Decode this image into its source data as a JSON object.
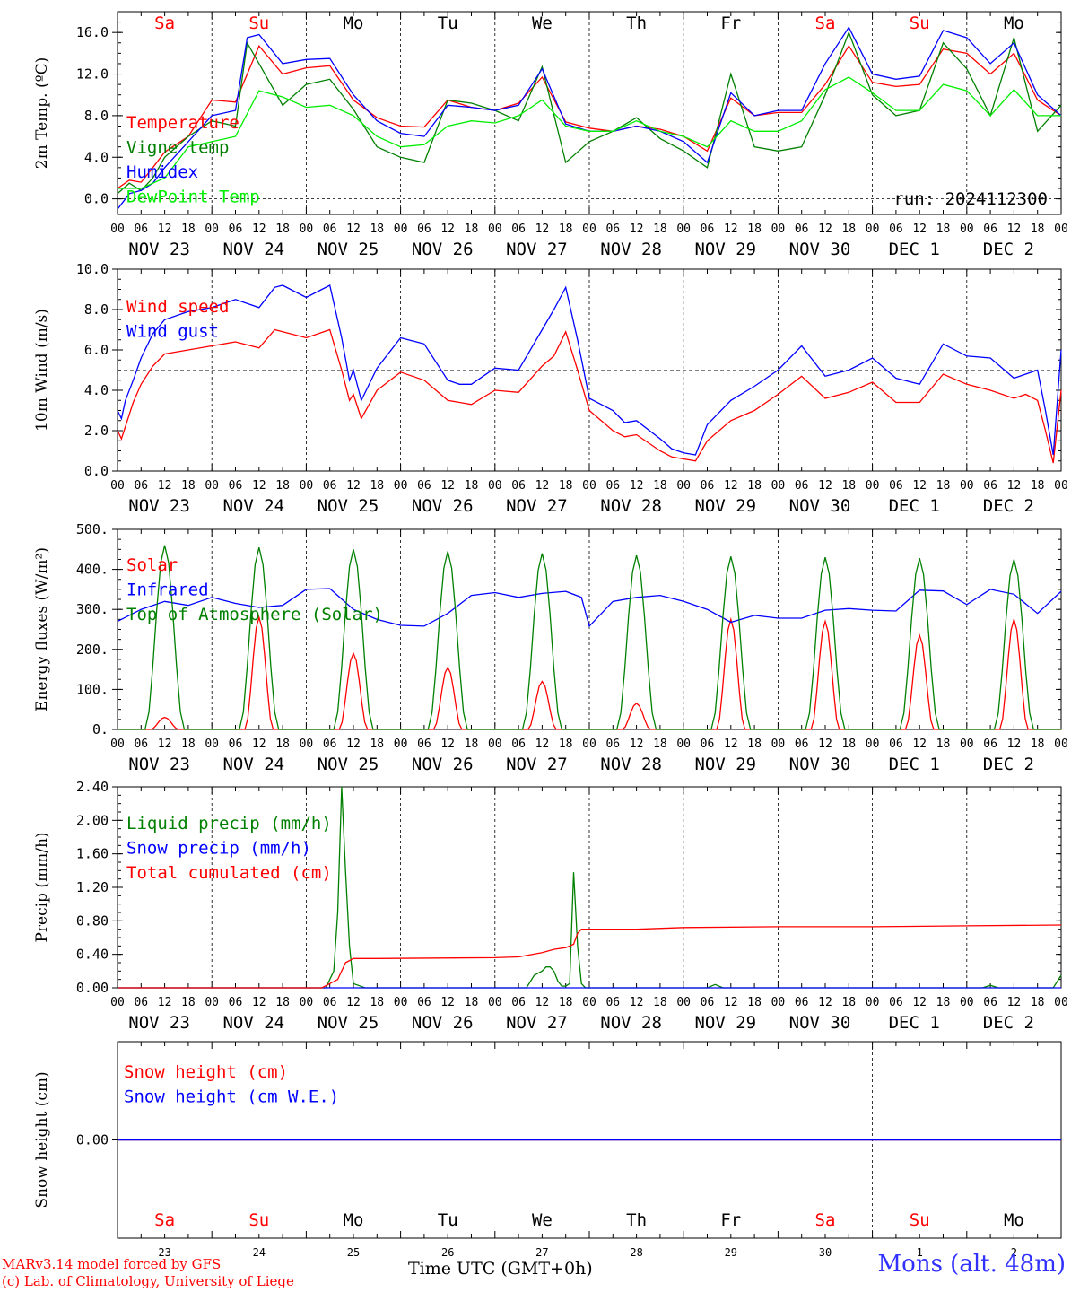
{
  "station": "Mons (alt. 48m)",
  "credits": [
    "MARv3.14 model forced by GFS",
    "(c) Lab. of Climatology, University of Liege"
  ],
  "time_label": "Time UTC (GMT+0h)",
  "run_label": "run: 2024112300",
  "day_ticks": [
    "00",
    "06",
    "12",
    "18"
  ],
  "final_tick": "00",
  "dates": [
    "NOV 23",
    "NOV 24",
    "NOV 25",
    "NOV 26",
    "NOV 27",
    "NOV 28",
    "NOV 29",
    "NOV 30",
    "DEC  1",
    "DEC  2"
  ],
  "weekdays": [
    {
      "label": "Sa",
      "color": "#ff0000"
    },
    {
      "label": "Su",
      "color": "#ff0000"
    },
    {
      "label": "Mo",
      "color": "#000000"
    },
    {
      "label": "Tu",
      "color": "#000000"
    },
    {
      "label": "We",
      "color": "#000000"
    },
    {
      "label": "Th",
      "color": "#000000"
    },
    {
      "label": "Fr",
      "color": "#000000"
    },
    {
      "label": "Sa",
      "color": "#ff0000"
    },
    {
      "label": "Su",
      "color": "#ff0000"
    },
    {
      "label": "Mo",
      "color": "#000000"
    }
  ],
  "day_numbers": [
    "23",
    "24",
    "25",
    "26",
    "27",
    "28",
    "29",
    "30",
    "1",
    "2"
  ],
  "chart_data": [
    {
      "type": "line",
      "ylabel": "2m Temp. (ºC)",
      "ylim": [
        -1.5,
        18
      ],
      "yticks": [
        0,
        4,
        8,
        12,
        16
      ],
      "ytick_labels": [
        "0.0",
        "4.0",
        "8.0",
        "12.0",
        "16.0"
      ],
      "zero_line": true,
      "x_unit": "hours since Nov 23 00 UTC",
      "series": [
        {
          "name": "Temperature",
          "color": "#ff0000",
          "x": [
            0,
            3,
            6,
            9,
            12,
            18,
            24,
            30,
            36,
            42,
            48,
            54,
            60,
            66,
            72,
            78,
            84,
            90,
            96,
            102,
            108,
            114,
            120,
            126,
            132,
            138,
            144,
            150,
            156,
            162,
            168,
            174,
            180,
            186,
            192,
            198,
            204,
            210,
            216,
            222,
            228,
            234,
            240
          ],
          "y": [
            1.0,
            1.8,
            1.6,
            3.0,
            4.5,
            6.0,
            9.5,
            9.3,
            14.7,
            12.0,
            12.6,
            12.8,
            9.5,
            7.8,
            7.0,
            6.9,
            9.5,
            8.8,
            8.5,
            9.2,
            11.7,
            7.4,
            6.8,
            6.5,
            7.0,
            6.7,
            6.0,
            4.6,
            9.7,
            8.0,
            8.3,
            8.3,
            11.0,
            14.7,
            11.2,
            10.8,
            11.0,
            14.4,
            14.0,
            12.0,
            14.0,
            9.5,
            8.0
          ]
        },
        {
          "name": "Vigne temp",
          "color": "#008000",
          "x": [
            0,
            3,
            6,
            9,
            12,
            18,
            24,
            30,
            33,
            36,
            42,
            48,
            54,
            60,
            66,
            72,
            78,
            84,
            90,
            96,
            102,
            108,
            114,
            120,
            126,
            132,
            138,
            144,
            150,
            156,
            162,
            168,
            174,
            180,
            186,
            192,
            198,
            204,
            210,
            216,
            222,
            228,
            234,
            240
          ],
          "y": [
            0.5,
            1.5,
            0.8,
            2.0,
            4.0,
            6.0,
            7.5,
            7.0,
            15.0,
            13.0,
            9.0,
            11.0,
            11.5,
            8.6,
            5.0,
            4.0,
            3.5,
            9.5,
            9.2,
            8.5,
            7.5,
            12.7,
            3.5,
            5.5,
            6.5,
            7.8,
            5.8,
            4.6,
            3.0,
            12.0,
            5.0,
            4.6,
            5.0,
            10.0,
            16.0,
            10.0,
            8.0,
            8.5,
            15.0,
            12.5,
            8.0,
            15.5,
            6.5,
            9.0
          ]
        },
        {
          "name": "Humidex",
          "color": "#0000ff",
          "x": [
            0,
            3,
            6,
            9,
            12,
            18,
            24,
            30,
            33,
            36,
            42,
            48,
            54,
            60,
            66,
            72,
            78,
            84,
            90,
            96,
            102,
            108,
            114,
            120,
            126,
            132,
            138,
            144,
            150,
            156,
            162,
            168,
            174,
            180,
            186,
            192,
            198,
            204,
            210,
            216,
            222,
            228,
            234,
            240
          ],
          "y": [
            -1.0,
            0.5,
            0.8,
            1.5,
            3.0,
            5.5,
            8.0,
            8.5,
            15.5,
            15.8,
            13.0,
            13.4,
            13.5,
            10.0,
            7.5,
            6.3,
            6.0,
            9.0,
            8.8,
            8.5,
            9.0,
            12.5,
            7.2,
            6.5,
            6.5,
            7.0,
            6.5,
            5.5,
            3.5,
            10.2,
            8.0,
            8.5,
            8.5,
            13.0,
            16.5,
            12.0,
            11.5,
            11.8,
            16.2,
            15.5,
            13.0,
            15.0,
            10.0,
            8.0
          ]
        },
        {
          "name": "DewPoint Temp",
          "color": "#00ee00",
          "x": [
            0,
            6,
            12,
            18,
            24,
            30,
            36,
            42,
            48,
            54,
            60,
            66,
            72,
            78,
            84,
            90,
            96,
            102,
            108,
            114,
            120,
            126,
            132,
            138,
            144,
            150,
            156,
            162,
            168,
            174,
            180,
            186,
            192,
            198,
            204,
            210,
            216,
            222,
            228,
            234,
            240
          ],
          "y": [
            1.0,
            1.0,
            2.0,
            5.0,
            5.5,
            6.0,
            10.4,
            9.8,
            8.8,
            9.0,
            8.0,
            6.0,
            5.0,
            5.2,
            7.0,
            7.5,
            7.3,
            8.0,
            9.5,
            7.0,
            6.5,
            6.5,
            7.5,
            6.5,
            6.0,
            5.0,
            7.5,
            6.5,
            6.5,
            7.5,
            10.5,
            11.7,
            10.2,
            8.5,
            8.5,
            11.0,
            10.4,
            8.0,
            10.5,
            8.0,
            8.0
          ]
        }
      ]
    },
    {
      "type": "line",
      "ylabel": "10m Wind (m/s)",
      "ylim": [
        0,
        10
      ],
      "yticks": [
        0,
        2,
        4,
        6,
        8,
        10
      ],
      "ytick_labels": [
        "0.0",
        "2.0",
        "4.0",
        "6.0",
        "8.0",
        "10.0"
      ],
      "ref_line": 5,
      "series": [
        {
          "name": "Wind speed",
          "color": "#ff0000",
          "x": [
            0,
            1,
            2,
            4,
            6,
            9,
            12,
            18,
            24,
            30,
            36,
            40,
            42,
            48,
            54,
            57,
            59,
            60,
            62,
            66,
            72,
            78,
            84,
            87,
            90,
            96,
            102,
            108,
            111,
            114,
            117,
            120,
            126,
            129,
            132,
            138,
            141,
            144,
            147,
            150,
            156,
            162,
            168,
            174,
            180,
            186,
            192,
            198,
            204,
            210,
            216,
            222,
            228,
            231,
            234,
            236,
            238,
            240
          ],
          "y": [
            2.0,
            1.6,
            2.2,
            3.4,
            4.3,
            5.2,
            5.8,
            6.0,
            6.2,
            6.4,
            6.1,
            7.0,
            6.9,
            6.6,
            7.0,
            5.0,
            3.5,
            3.8,
            2.6,
            4.0,
            4.9,
            4.5,
            3.5,
            3.4,
            3.3,
            4.0,
            3.9,
            5.2,
            5.7,
            6.9,
            5.0,
            3.0,
            2.0,
            1.7,
            1.8,
            1.0,
            0.7,
            0.6,
            0.5,
            1.5,
            2.5,
            3.0,
            3.8,
            4.7,
            3.6,
            3.9,
            4.4,
            3.4,
            3.4,
            4.8,
            4.3,
            4.0,
            3.6,
            3.8,
            3.5,
            2.0,
            0.4,
            4.0
          ]
        },
        {
          "name": "Wind gust",
          "color": "#0000ff",
          "x": [
            0,
            1,
            2,
            4,
            6,
            9,
            12,
            18,
            24,
            30,
            36,
            40,
            42,
            48,
            54,
            57,
            59,
            60,
            62,
            66,
            72,
            78,
            84,
            87,
            90,
            96,
            102,
            108,
            111,
            114,
            117,
            120,
            126,
            129,
            132,
            138,
            141,
            144,
            147,
            150,
            156,
            162,
            168,
            174,
            180,
            186,
            192,
            198,
            204,
            210,
            216,
            222,
            228,
            231,
            234,
            236,
            238,
            240
          ],
          "y": [
            3.0,
            2.6,
            3.5,
            4.5,
            5.6,
            6.8,
            7.5,
            7.9,
            8.1,
            8.5,
            8.1,
            9.1,
            9.2,
            8.6,
            9.2,
            6.6,
            4.5,
            5.0,
            3.5,
            5.1,
            6.6,
            6.3,
            4.5,
            4.3,
            4.3,
            5.1,
            5.0,
            7.0,
            8.0,
            9.1,
            6.5,
            3.6,
            3.0,
            2.4,
            2.5,
            1.6,
            1.1,
            0.9,
            0.8,
            2.3,
            3.5,
            4.2,
            5.0,
            6.2,
            4.7,
            5.0,
            5.6,
            4.6,
            4.3,
            6.3,
            5.7,
            5.6,
            4.6,
            4.8,
            5.0,
            3.0,
            0.8,
            6.0
          ]
        }
      ]
    },
    {
      "type": "line",
      "ylabel": "Energy fluxes (W/m²)",
      "ylim": [
        0,
        500
      ],
      "yticks": [
        0,
        100,
        200,
        300,
        400,
        500
      ],
      "ytick_labels": [
        "0.",
        "100.",
        "200.",
        "300.",
        "400.",
        "500."
      ],
      "series": [
        {
          "name": "Solar",
          "color": "#ff0000",
          "peaks": [
            30,
            280,
            190,
            155,
            120,
            65,
            275,
            270,
            235,
            275
          ]
        },
        {
          "name": "Infrared",
          "color": "#0000ff",
          "x": [
            0,
            6,
            12,
            18,
            24,
            30,
            36,
            42,
            48,
            54,
            60,
            66,
            72,
            78,
            84,
            90,
            96,
            102,
            108,
            114,
            118,
            120,
            126,
            132,
            138,
            144,
            150,
            156,
            162,
            168,
            174,
            180,
            186,
            192,
            198,
            204,
            210,
            216,
            222,
            228,
            234,
            240
          ],
          "y": [
            270,
            300,
            320,
            310,
            330,
            315,
            305,
            310,
            350,
            352,
            300,
            275,
            260,
            258,
            290,
            335,
            342,
            330,
            340,
            345,
            330,
            258,
            320,
            330,
            335,
            320,
            300,
            268,
            285,
            278,
            278,
            298,
            302,
            298,
            296,
            348,
            346,
            312,
            350,
            338,
            290,
            345
          ]
        },
        {
          "name": "Top of Atmosphere (Solar)",
          "color": "#008000",
          "peaks": [
            460,
            455,
            450,
            445,
            440,
            435,
            432,
            430,
            428,
            425
          ]
        }
      ]
    },
    {
      "type": "line",
      "ylabel": "Precip (mm/h)",
      "ylim": [
        0,
        2.4
      ],
      "yticks": [
        0,
        0.4,
        0.8,
        1.2,
        1.6,
        2.0,
        2.4
      ],
      "ytick_labels": [
        "0.00",
        "0.40",
        "0.80",
        "1.20",
        "1.60",
        "2.00",
        "2.40"
      ],
      "series": [
        {
          "name": "Liquid precip (mm/h)",
          "color": "#008000",
          "x": [
            0,
            53,
            55,
            56,
            57,
            58,
            59,
            60,
            63,
            66,
            104,
            106,
            108,
            109,
            110,
            111,
            112,
            113,
            114,
            115,
            116,
            117,
            118,
            119,
            150,
            152,
            154,
            220,
            222,
            224,
            238,
            240
          ],
          "y": [
            0,
            0,
            0.2,
            0.9,
            2.4,
            1.4,
            0.5,
            0.05,
            0,
            0,
            0,
            0.15,
            0.2,
            0.25,
            0.25,
            0.2,
            0.08,
            0.02,
            0.02,
            0.05,
            1.38,
            0.5,
            0.05,
            0,
            0,
            0.04,
            0,
            0,
            0.03,
            0,
            0,
            0.15
          ]
        },
        {
          "name": "Snow precip (mm/h)",
          "color": "#0000ff",
          "x": [
            0,
            240
          ],
          "y": [
            0,
            0
          ]
        },
        {
          "name": "Total cumulated (cm)",
          "color": "#ff0000",
          "x": [
            0,
            52,
            56,
            58,
            60,
            66,
            96,
            102,
            108,
            111,
            114,
            116,
            117,
            118,
            120,
            132,
            144,
            168,
            192,
            216,
            240
          ],
          "y": [
            0,
            0,
            0.1,
            0.3,
            0.35,
            0.35,
            0.36,
            0.37,
            0.42,
            0.46,
            0.48,
            0.52,
            0.65,
            0.7,
            0.7,
            0.7,
            0.72,
            0.73,
            0.73,
            0.74,
            0.75
          ]
        }
      ]
    },
    {
      "type": "line",
      "ylabel": "Snow height (cm)",
      "ylim": [
        -1,
        1
      ],
      "yticks": [
        0
      ],
      "ytick_labels": [
        "0.00"
      ],
      "series": [
        {
          "name": "Snow height (cm)",
          "color": "#ff0000",
          "x": [
            0,
            240
          ],
          "y": [
            0,
            0
          ]
        },
        {
          "name": "Snow height (cm W.E.)",
          "color": "#0000ff",
          "x": [
            0,
            240
          ],
          "y": [
            0,
            0
          ]
        }
      ]
    }
  ]
}
